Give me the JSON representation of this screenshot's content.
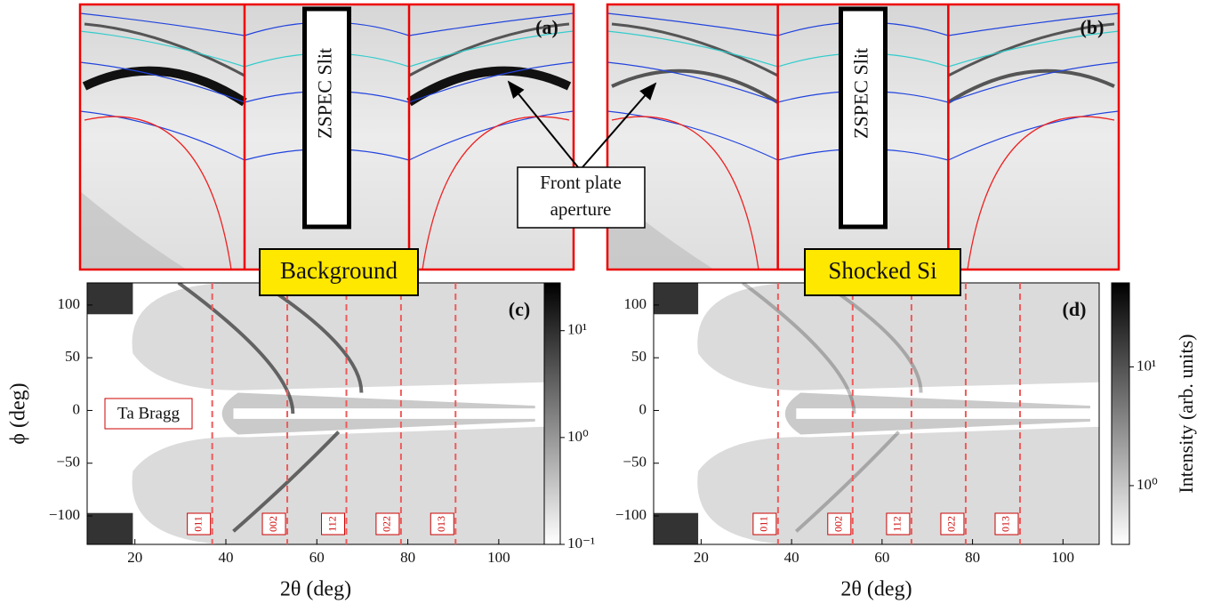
{
  "figure": {
    "photos": [
      {
        "label": "(a)",
        "slit": "ZSPEC Slit"
      },
      {
        "label": "(b)",
        "slit": "ZSPEC Slit"
      }
    ],
    "callout": [
      "Front plate",
      "aperture"
    ],
    "conditions": [
      "Background",
      "Shocked Si"
    ]
  },
  "chart_data": [
    {
      "type": "heatmap",
      "label": "(c)",
      "xlabel": "2θ (deg)",
      "ylabel": "ϕ (deg)",
      "xlim": [
        9.5,
        110
      ],
      "ylim": [
        -127,
        121
      ],
      "xticks": [
        20,
        40,
        60,
        80,
        100
      ],
      "yticks": [
        {
          "value": -100,
          "label": "−100"
        },
        {
          "value": -50,
          "label": "−50"
        },
        0,
        50,
        100
      ],
      "vlines": [
        {
          "x": 37,
          "label": "011"
        },
        {
          "x": 53.5,
          "label": "002"
        },
        {
          "x": 66.5,
          "label": "112"
        },
        {
          "x": 78.5,
          "label": "022"
        },
        {
          "x": 90.5,
          "label": "013"
        }
      ],
      "annotation": "Ta Bragg",
      "colorbar": {
        "log": true,
        "lim": [
          0.1,
          28
        ],
        "ticks": [
          {
            "value": 0.1,
            "label": "10⁻¹"
          },
          {
            "value": 1,
            "label": "10⁰"
          },
          {
            "value": 10,
            "label": "10¹"
          }
        ]
      }
    },
    {
      "type": "heatmap",
      "label": "(d)",
      "xlabel": "2θ (deg)",
      "xlim": [
        9.5,
        108
      ],
      "ylim": [
        -127,
        121
      ],
      "xticks": [
        20,
        40,
        60,
        80,
        100
      ],
      "yticks": [
        {
          "value": -100,
          "label": "−100"
        },
        {
          "value": -50,
          "label": "−50"
        },
        0,
        50,
        100
      ],
      "vlines": [
        {
          "x": 37,
          "label": "011"
        },
        {
          "x": 53.5,
          "label": "002"
        },
        {
          "x": 66.5,
          "label": "112"
        },
        {
          "x": 78.5,
          "label": "022"
        },
        {
          "x": 90.5,
          "label": "013"
        }
      ],
      "colorbar": {
        "log": true,
        "lim": [
          0.32,
          51
        ],
        "label": "Intensity (arb. units)",
        "ticks": [
          {
            "value": 1,
            "label": "10⁰"
          },
          {
            "value": 10,
            "label": "10¹"
          }
        ]
      }
    }
  ]
}
